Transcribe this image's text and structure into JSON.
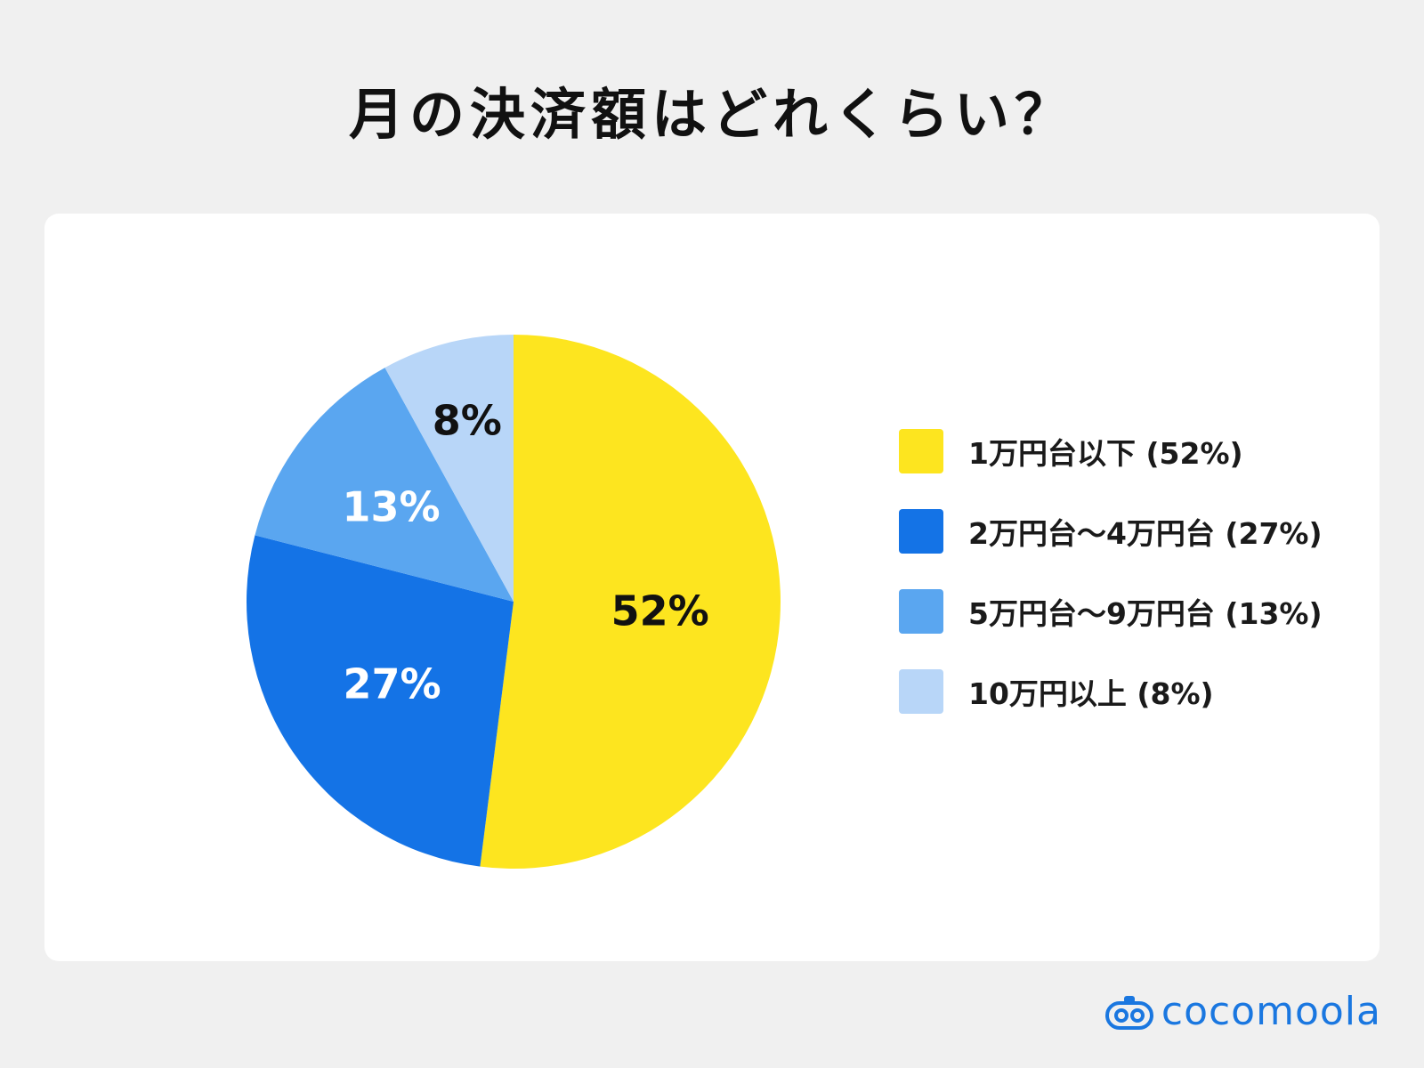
{
  "title": "月の決済額はどれくらい？",
  "logo": {
    "text": "cocomoola"
  },
  "chart_data": {
    "type": "pie",
    "title": "月の決済額はどれくらい？",
    "categories": [
      "1万円台以下",
      "2万円台〜4万円台",
      "5万円台〜9万円台",
      "10万円以上"
    ],
    "values": [
      52,
      27,
      13,
      8
    ],
    "slice_labels": [
      "52%",
      "27%",
      "13%",
      "8%"
    ],
    "legend_labels": [
      "1万円台以下 (52%)",
      "2万円台〜4万円台 (27%)",
      "5万円台〜9万円台 (13%)",
      "10万円以上 (8%)"
    ],
    "colors": [
      "#fde51f",
      "#1473e6",
      "#5aa6f0",
      "#b8d6f8"
    ],
    "label_colors": [
      "#111111",
      "#ffffff",
      "#ffffff",
      "#111111"
    ],
    "legend_position": "right",
    "start": "top",
    "direction": "clockwise"
  }
}
